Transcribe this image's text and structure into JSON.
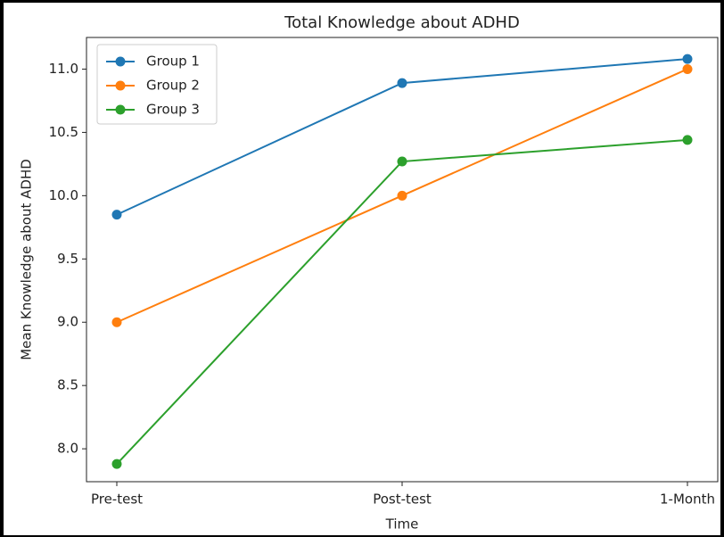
{
  "chart_data": {
    "type": "line",
    "title": "Total Knowledge about ADHD",
    "x_label": "Time",
    "y_label": "Mean Knowledge about ADHD",
    "categories": [
      "Pre-test",
      "Post-test",
      "1-Month"
    ],
    "series": [
      {
        "name": "Group 1",
        "color": "#1f77b4",
        "values": [
          9.85,
          10.89,
          11.08
        ]
      },
      {
        "name": "Group 2",
        "color": "#ff7f0e",
        "values": [
          9.0,
          10.0,
          11.0
        ]
      },
      {
        "name": "Group 3",
        "color": "#2ca02c",
        "values": [
          7.88,
          10.27,
          10.44
        ]
      }
    ],
    "ylim": [
      7.74,
      11.25
    ],
    "yticks": [
      {
        "value": 8,
        "label": "8.0"
      },
      8.5,
      {
        "value": 9,
        "label": "9.0"
      },
      9.5,
      {
        "value": 10,
        "label": "10.0"
      },
      10.5,
      {
        "value": 11,
        "label": "11.0"
      }
    ],
    "grid": false,
    "legend": "upper left"
  }
}
